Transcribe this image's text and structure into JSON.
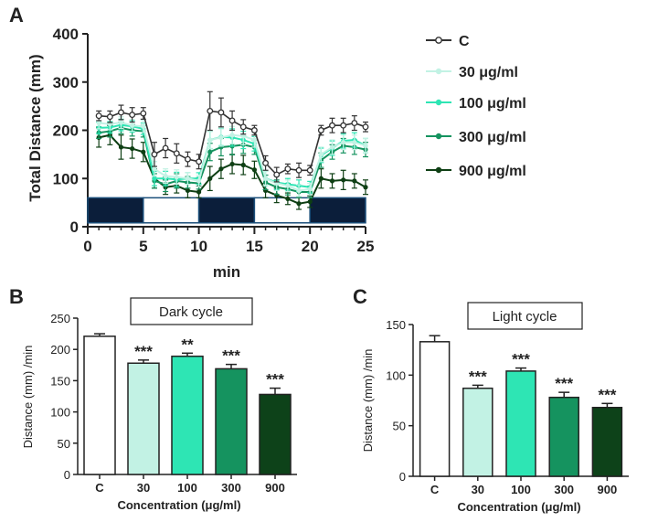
{
  "chart_data": [
    {
      "panel": "A",
      "type": "line",
      "xlabel": "min",
      "ylabel": "Total Distance (mm)",
      "xlim": [
        0,
        25
      ],
      "ylim": [
        0,
        400
      ],
      "xticks": [
        0,
        5,
        10,
        15,
        20,
        25
      ],
      "yticks": [
        0,
        100,
        200,
        300,
        400
      ],
      "x": [
        1,
        2,
        3,
        4,
        5,
        6,
        7,
        8,
        9,
        10,
        11,
        12,
        13,
        14,
        15,
        16,
        17,
        18,
        19,
        20,
        21,
        22,
        23,
        24,
        25
      ],
      "light_dark_bar": [
        {
          "from": 0,
          "to": 5,
          "state": "dark"
        },
        {
          "from": 5,
          "to": 10,
          "state": "light"
        },
        {
          "from": 10,
          "to": 15,
          "state": "dark"
        },
        {
          "from": 15,
          "to": 20,
          "state": "light"
        },
        {
          "from": 20,
          "to": 25,
          "state": "dark"
        }
      ],
      "series": [
        {
          "name": "C",
          "color": "#333333",
          "marker": "open-circle",
          "values": [
            230,
            228,
            237,
            232,
            235,
            150,
            163,
            152,
            140,
            135,
            240,
            237,
            220,
            207,
            200,
            132,
            108,
            120,
            117,
            117,
            200,
            210,
            210,
            215,
            207
          ],
          "errors": [
            10,
            12,
            15,
            15,
            12,
            25,
            20,
            20,
            15,
            15,
            40,
            30,
            20,
            15,
            10,
            15,
            15,
            10,
            15,
            10,
            10,
            15,
            15,
            15,
            10
          ]
        },
        {
          "name": "30 μg/ml",
          "color": "#c2f2e4",
          "marker": "filled-circle",
          "values": [
            215,
            213,
            216,
            210,
            208,
            120,
            105,
            103,
            100,
            95,
            180,
            185,
            190,
            188,
            180,
            100,
            90,
            85,
            75,
            78,
            150,
            165,
            175,
            175,
            168
          ],
          "errors": [
            12,
            12,
            12,
            12,
            12,
            15,
            15,
            15,
            12,
            12,
            18,
            18,
            18,
            18,
            15,
            15,
            15,
            12,
            12,
            12,
            15,
            15,
            15,
            15,
            15
          ]
        },
        {
          "name": "100 μg/ml",
          "color": "#2ee5b4",
          "marker": "filled-circle",
          "values": [
            205,
            206,
            211,
            208,
            203,
            100,
            100,
            98,
            100,
            100,
            180,
            186,
            185,
            180,
            172,
            100,
            92,
            88,
            85,
            82,
            148,
            163,
            178,
            180,
            168
          ],
          "errors": [
            12,
            12,
            12,
            12,
            12,
            15,
            15,
            15,
            12,
            12,
            18,
            18,
            18,
            18,
            15,
            15,
            15,
            12,
            12,
            12,
            15,
            15,
            15,
            15,
            15
          ]
        },
        {
          "name": "300 μg/ml",
          "color": "#15935f",
          "marker": "filled-circle",
          "values": [
            195,
            198,
            205,
            200,
            198,
            95,
            88,
            95,
            92,
            90,
            155,
            165,
            167,
            170,
            165,
            92,
            82,
            78,
            72,
            72,
            138,
            155,
            168,
            165,
            160
          ],
          "errors": [
            12,
            12,
            12,
            12,
            12,
            15,
            15,
            15,
            12,
            12,
            18,
            18,
            18,
            18,
            15,
            15,
            15,
            12,
            12,
            12,
            15,
            15,
            15,
            15,
            15
          ]
        },
        {
          "name": "900 μg/ml",
          "color": "#0e3f14",
          "marker": "filled-circle",
          "values": [
            185,
            190,
            165,
            162,
            155,
            100,
            82,
            85,
            75,
            72,
            100,
            120,
            130,
            128,
            118,
            75,
            65,
            58,
            48,
            52,
            100,
            95,
            97,
            95,
            82
          ],
          "errors": [
            20,
            20,
            25,
            20,
            20,
            20,
            15,
            15,
            15,
            12,
            25,
            20,
            20,
            20,
            18,
            15,
            15,
            12,
            12,
            12,
            20,
            15,
            20,
            15,
            15
          ]
        }
      ]
    },
    {
      "panel": "B",
      "type": "bar",
      "title": "Dark cycle",
      "xlabel": "Concentration (μg/ml)",
      "ylabel": "Distance (mm) /min",
      "ylim": [
        0,
        250
      ],
      "yticks": [
        0,
        50,
        100,
        150,
        200,
        250
      ],
      "categories": [
        "C",
        "30",
        "100",
        "300",
        "900"
      ],
      "values": [
        221,
        178,
        189,
        169,
        128
      ],
      "errors": [
        4,
        5,
        5,
        7,
        10
      ],
      "significance": [
        "",
        "***",
        "**",
        "***",
        "***"
      ],
      "colors": [
        "#ffffff",
        "#c2f2e4",
        "#2ee5b4",
        "#15935f",
        "#0d4219"
      ]
    },
    {
      "panel": "C",
      "type": "bar",
      "title": "Light cycle",
      "xlabel": "Concentration (μg/ml)",
      "ylabel": "Distance (mm) /min",
      "ylim": [
        0,
        150
      ],
      "yticks": [
        0,
        50,
        100,
        150
      ],
      "categories": [
        "C",
        "30",
        "100",
        "300",
        "900"
      ],
      "values": [
        133,
        87,
        104,
        78,
        68
      ],
      "errors": [
        6,
        3,
        3,
        5,
        4
      ],
      "significance": [
        "",
        "***",
        "***",
        "***",
        "***"
      ],
      "colors": [
        "#ffffff",
        "#c2f2e4",
        "#2ee5b4",
        "#15935f",
        "#0d4219"
      ]
    }
  ]
}
